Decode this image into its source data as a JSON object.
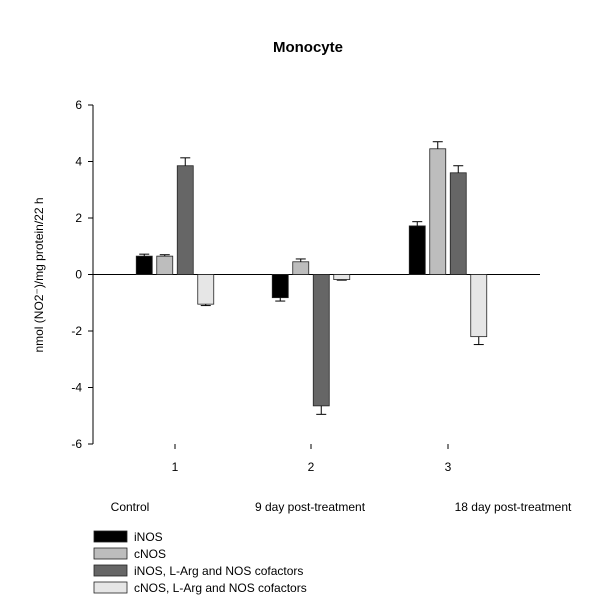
{
  "chart_data": {
    "type": "bar",
    "title": "Monocyte",
    "ylabel": "nmol (NO2⁻)/mg protein/22 h",
    "ylim": [
      -6,
      6
    ],
    "yticks": [
      -6,
      -4,
      -2,
      0,
      2,
      4,
      6
    ],
    "categories": [
      "1",
      "2",
      "3"
    ],
    "group_labels": [
      "Control",
      "9 day post-treatment",
      "18 day post-treatment"
    ],
    "series": [
      {
        "name": "iNOS",
        "color": "#000000",
        "values": [
          0.65,
          -0.82,
          1.72
        ],
        "errors": [
          0.07,
          0.12,
          0.15
        ]
      },
      {
        "name": "cNOS",
        "color": "#bdbdbd",
        "values": [
          0.65,
          0.45,
          4.45
        ],
        "errors": [
          0.05,
          0.1,
          0.25
        ]
      },
      {
        "name": "iNOS, L-Arg and NOS cofactors",
        "color": "#666666",
        "values": [
          3.85,
          -4.65,
          3.6
        ],
        "errors": [
          0.28,
          0.3,
          0.25
        ]
      },
      {
        "name": "cNOS, L-Arg and NOS cofactors",
        "color": "#e6e6e6",
        "values": [
          -1.05,
          -0.18,
          -2.2
        ],
        "errors": [
          0.05,
          0.02,
          0.28
        ]
      }
    ],
    "grid": false,
    "legend_position": "bottom-left"
  }
}
